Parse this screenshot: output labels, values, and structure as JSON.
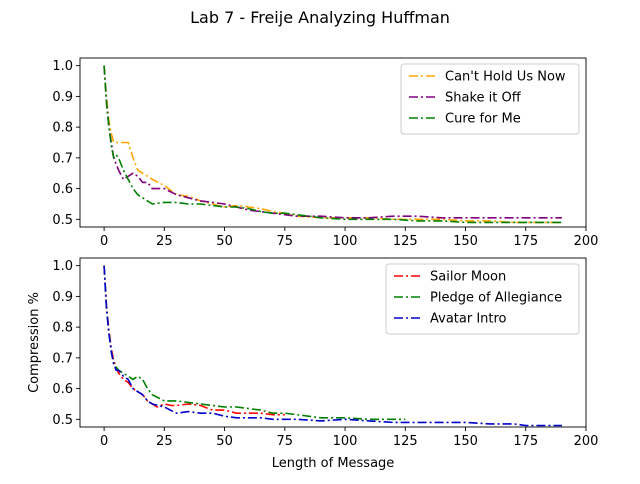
{
  "figure": {
    "title": "Lab 7 - Freije Analyzing Huffman"
  },
  "colors": {
    "orange": "#ffa500",
    "purple": "#800080",
    "green": "#008000",
    "red": "#ff0000",
    "blue": "#0000cd"
  },
  "chart_data": [
    {
      "type": "line",
      "title": "",
      "xlabel": "",
      "ylabel": "",
      "xlim": [
        -10,
        200
      ],
      "ylim": [
        0.475,
        1.025
      ],
      "xticks": [
        0,
        25,
        50,
        75,
        100,
        125,
        150,
        175,
        200
      ],
      "yticks": [
        0.5,
        0.6,
        0.7,
        0.8,
        0.9,
        1.0
      ],
      "ytick_labels": [
        "0.5",
        "0.6",
        "0.7",
        "0.8",
        "0.9",
        "1.0"
      ],
      "grid": false,
      "legend_position": "top-right",
      "series": [
        {
          "name": "Can't Hold Us Now",
          "color": "#ffa500",
          "linestyle": "dashdot",
          "x": [
            0,
            1,
            2,
            3,
            4,
            6,
            8,
            10,
            12,
            14,
            16,
            18,
            20,
            25,
            30,
            35,
            40,
            45,
            50,
            55,
            60,
            65,
            70,
            75,
            80,
            90,
            100,
            110,
            120,
            130,
            140,
            150,
            160,
            170,
            180,
            190
          ],
          "y": [
            1.0,
            0.9,
            0.82,
            0.78,
            0.75,
            0.75,
            0.75,
            0.75,
            0.7,
            0.66,
            0.65,
            0.64,
            0.63,
            0.61,
            0.58,
            0.575,
            0.56,
            0.55,
            0.54,
            0.545,
            0.54,
            0.535,
            0.525,
            0.52,
            0.51,
            0.505,
            0.505,
            0.505,
            0.5,
            0.5,
            0.5,
            0.495,
            0.495,
            0.49,
            0.49,
            0.49
          ]
        },
        {
          "name": "Shake it Off",
          "color": "#800080",
          "linestyle": "dashdot",
          "x": [
            0,
            1,
            2,
            3,
            4,
            5,
            6,
            8,
            10,
            12,
            14,
            16,
            18,
            20,
            25,
            30,
            35,
            40,
            45,
            50,
            55,
            60,
            65,
            70,
            75,
            80,
            90,
            100,
            110,
            120,
            130,
            140,
            150,
            160,
            170,
            180,
            190
          ],
          "y": [
            1.0,
            0.88,
            0.8,
            0.75,
            0.7,
            0.68,
            0.66,
            0.63,
            0.64,
            0.65,
            0.64,
            0.62,
            0.62,
            0.6,
            0.6,
            0.58,
            0.57,
            0.56,
            0.555,
            0.55,
            0.54,
            0.53,
            0.525,
            0.52,
            0.515,
            0.51,
            0.51,
            0.505,
            0.505,
            0.51,
            0.51,
            0.505,
            0.505,
            0.505,
            0.505,
            0.505,
            0.505
          ]
        },
        {
          "name": "Cure for Me",
          "color": "#008000",
          "linestyle": "dashdot",
          "x": [
            0,
            1,
            2,
            3,
            4,
            5,
            6,
            8,
            10,
            12,
            14,
            16,
            18,
            20,
            25,
            30,
            35,
            40,
            45,
            50,
            55,
            60,
            65,
            70,
            75,
            80,
            90,
            100,
            110,
            120,
            130,
            140,
            150,
            160,
            170,
            180,
            190
          ],
          "y": [
            1.0,
            0.88,
            0.8,
            0.74,
            0.7,
            0.71,
            0.7,
            0.66,
            0.63,
            0.6,
            0.58,
            0.57,
            0.56,
            0.55,
            0.555,
            0.555,
            0.55,
            0.55,
            0.545,
            0.54,
            0.54,
            0.535,
            0.525,
            0.52,
            0.52,
            0.515,
            0.505,
            0.5,
            0.5,
            0.5,
            0.495,
            0.495,
            0.49,
            0.49,
            0.49,
            0.49,
            0.49
          ]
        }
      ]
    },
    {
      "type": "line",
      "title": "",
      "xlabel": "Length of Message",
      "ylabel": "Compression %",
      "xlim": [
        -10,
        200
      ],
      "ylim": [
        0.475,
        1.025
      ],
      "xticks": [
        0,
        25,
        50,
        75,
        100,
        125,
        150,
        175,
        200
      ],
      "yticks": [
        0.5,
        0.6,
        0.7,
        0.8,
        0.9,
        1.0
      ],
      "ytick_labels": [
        "0.5",
        "0.6",
        "0.7",
        "0.8",
        "0.9",
        "1.0"
      ],
      "grid": false,
      "legend_position": "top-right",
      "series": [
        {
          "name": "Sailor Moon",
          "color": "#ff0000",
          "linestyle": "dashdot",
          "x": [
            0,
            1,
            2,
            3,
            4,
            6,
            8,
            10,
            12,
            14,
            16,
            18,
            20,
            22,
            25,
            28,
            30,
            35,
            40,
            45,
            50,
            55,
            60,
            65,
            70,
            75
          ],
          "y": [
            1.0,
            0.87,
            0.79,
            0.73,
            0.69,
            0.65,
            0.63,
            0.62,
            0.6,
            0.59,
            0.58,
            0.56,
            0.55,
            0.54,
            0.55,
            0.545,
            0.545,
            0.55,
            0.545,
            0.53,
            0.53,
            0.52,
            0.52,
            0.52,
            0.515,
            0.515
          ]
        },
        {
          "name": "Pledge of Allegiance",
          "color": "#008000",
          "linestyle": "dashdot",
          "x": [
            0,
            1,
            2,
            3,
            4,
            6,
            8,
            10,
            12,
            14,
            16,
            18,
            20,
            25,
            30,
            35,
            40,
            45,
            50,
            55,
            60,
            65,
            70,
            75,
            80,
            90,
            100,
            110,
            120,
            125
          ],
          "y": [
            1.0,
            0.86,
            0.78,
            0.72,
            0.68,
            0.66,
            0.65,
            0.64,
            0.63,
            0.64,
            0.63,
            0.6,
            0.58,
            0.56,
            0.56,
            0.555,
            0.55,
            0.545,
            0.54,
            0.54,
            0.535,
            0.53,
            0.52,
            0.52,
            0.515,
            0.505,
            0.505,
            0.5,
            0.5,
            0.5
          ]
        },
        {
          "name": "Avatar Intro",
          "color": "#0000cd",
          "linestyle": "dashdot",
          "x": [
            0,
            1,
            2,
            3,
            4,
            5,
            6,
            8,
            10,
            12,
            14,
            16,
            18,
            20,
            25,
            30,
            35,
            40,
            45,
            50,
            55,
            60,
            65,
            70,
            75,
            80,
            90,
            100,
            110,
            120,
            130,
            140,
            150,
            160,
            170,
            175,
            180,
            190
          ],
          "y": [
            1.0,
            0.86,
            0.78,
            0.72,
            0.68,
            0.66,
            0.66,
            0.64,
            0.63,
            0.6,
            0.59,
            0.58,
            0.56,
            0.55,
            0.54,
            0.52,
            0.525,
            0.52,
            0.52,
            0.51,
            0.505,
            0.505,
            0.505,
            0.5,
            0.5,
            0.5,
            0.495,
            0.5,
            0.495,
            0.49,
            0.49,
            0.49,
            0.49,
            0.485,
            0.485,
            0.48,
            0.48,
            0.48
          ]
        }
      ]
    }
  ]
}
